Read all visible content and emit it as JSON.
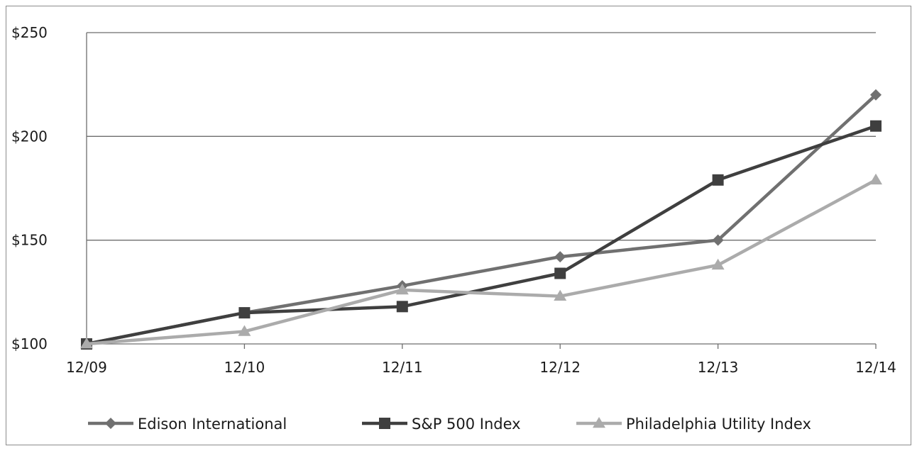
{
  "chart_data": {
    "type": "line",
    "categories": [
      "12/09",
      "12/10",
      "12/11",
      "12/12",
      "12/13",
      "12/14"
    ],
    "ylim": [
      100,
      250
    ],
    "yticks": [
      100,
      150,
      200,
      250
    ],
    "ytick_labels": [
      "$100",
      "$150",
      "$200",
      "$250"
    ],
    "grid": true,
    "legend_position": "bottom",
    "series": [
      {
        "name": "Edison International",
        "marker": "diamond",
        "color": "#707070",
        "values": [
          100,
          115,
          128,
          142,
          150,
          220
        ]
      },
      {
        "name": "S&P 500 Index",
        "marker": "square",
        "color": "#3f3f3f",
        "values": [
          100,
          115,
          118,
          134,
          179,
          205
        ]
      },
      {
        "name": "Philadelphia Utility Index",
        "marker": "triangle",
        "color": "#ababab",
        "values": [
          100,
          106,
          126,
          123,
          138,
          179
        ]
      }
    ]
  }
}
